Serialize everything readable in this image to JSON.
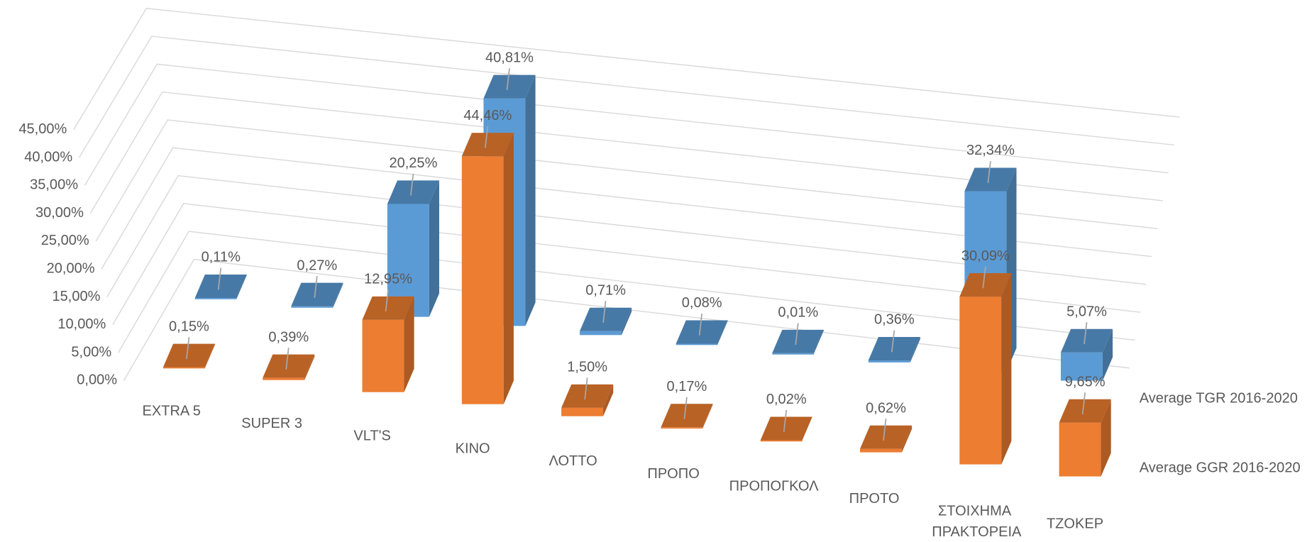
{
  "chart_data": {
    "type": "bar3d",
    "categories": [
      "EXTRA 5",
      "SUPER 3",
      "VLT'S",
      "KINO",
      "ΛΟΤΤΟ",
      "ΠΡΟΠΟ",
      "ΠΡΟΠΟΓΚΟΛ",
      "ΠΡΟΤΟ",
      "ΣΤΟΙΧΗΜΑ ΠΡΑΚΤΟΡΕΙΑ",
      "ΤΖΟΚΕΡ"
    ],
    "series": [
      {
        "name": "Average TGR 2016-2020",
        "color": "#5b9bd5",
        "values": [
          0.11,
          0.27,
          20.25,
          40.81,
          0.71,
          0.08,
          0.01,
          0.36,
          32.34,
          5.07
        ],
        "value_labels": [
          "0,11%",
          "0,27%",
          "20,25%",
          "40,81%",
          "0,71%",
          "0,08%",
          "0,01%",
          "0,36%",
          "32,34%",
          "5,07%"
        ]
      },
      {
        "name": "Average GGR 2016-2020",
        "color": "#ed7d31",
        "values": [
          0.15,
          0.39,
          12.95,
          44.46,
          1.5,
          0.17,
          0.02,
          0.62,
          30.09,
          9.65
        ],
        "value_labels": [
          "0,15%",
          "0,39%",
          "12,95%",
          "44,46%",
          "1,50%",
          "0,17%",
          "0,02%",
          "0,62%",
          "30,09%",
          "9,65%"
        ]
      }
    ],
    "ylim": [
      0,
      45
    ],
    "yticks": [
      {
        "value": 0,
        "label": "0,00%"
      },
      {
        "value": 5,
        "label": "5,00%"
      },
      {
        "value": 10,
        "label": "10,00%"
      },
      {
        "value": 15,
        "label": "15,00%"
      },
      {
        "value": 20,
        "label": "20,00%"
      },
      {
        "value": 25,
        "label": "25,00%"
      },
      {
        "value": 30,
        "label": "30,00%"
      },
      {
        "value": 35,
        "label": "35,00%"
      },
      {
        "value": 40,
        "label": "40,00%"
      },
      {
        "value": 45,
        "label": "45,00%"
      }
    ],
    "grid": true,
    "legend": "right"
  }
}
